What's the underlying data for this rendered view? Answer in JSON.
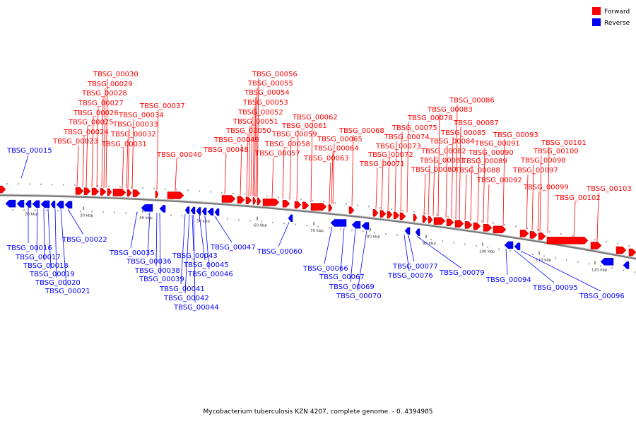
{
  "legend": {
    "forward_label": "Forward",
    "reverse_label": "Reverse",
    "forward_color": "#ff0000",
    "reverse_color": "#0000ff"
  },
  "caption": "Mycobacterium tuberculosis KZN 4207, complete genome. - 0..4394985",
  "axis_ticks": [
    "20 kbp",
    "30 kbp",
    "40 kbp",
    "50 kbp",
    "60 kbp",
    "70 kbp",
    "80 kbp",
    "90 kbp",
    "100 kbp",
    "110 kbp",
    "120 kbp"
  ],
  "forward_labels": [
    "TBSG_00023",
    "TBSG_00024",
    "TBSG_00025",
    "TBSG_00026",
    "TBSG_00027",
    "TBSG_00028",
    "TBSG_00029",
    "TBSG_00030",
    "TBSG_00031",
    "TBSG_00032",
    "TBSG_00033",
    "TBSG_00034",
    "TBSG_00037",
    "TBSG_00040",
    "TBSG_00048",
    "TBSG_00049",
    "TBSG_00050",
    "TBSG_00051",
    "TBSG_00052",
    "TBSG_00053",
    "TBSG_00054",
    "TBSG_00055",
    "TBSG_00056",
    "TBSG_00057",
    "TBSG_00058",
    "TBSG_00059",
    "TBSG_00061",
    "TBSG_00062",
    "TBSG_00063",
    "TBSG_00064",
    "TBSG_00065",
    "TBSG_00068",
    "TBSG_00071",
    "TBSG_00072",
    "TBSG_00073",
    "TBSG_00074",
    "TBSG_00075",
    "TBSG_00078",
    "TBSG_00080",
    "TBSG_00081",
    "TBSG_00082",
    "TBSG_00083",
    "TBSG_00084",
    "TBSG_00085",
    "TBSG_00086",
    "TBSG_00087",
    "TBSG_00088",
    "TBSG_00089",
    "TBSG_00090",
    "TBSG_00091",
    "TBSG_00092",
    "TBSG_00093",
    "TBSG_00097",
    "TBSG_00098",
    "TBSG_00099",
    "TBSG_00100",
    "TBSG_00101",
    "TBSG_00102",
    "TBSG_00103"
  ],
  "reverse_labels": [
    "TBSG_00015",
    "TBSG_00016",
    "TBSG_00017",
    "TBSG_00018",
    "TBSG_00019",
    "TBSG_00020",
    "TBSG_00021",
    "TBSG_00022",
    "TBSG_00035",
    "TBSG_00036",
    "TBSG_00038",
    "TBSG_00039",
    "TBSG_00041",
    "TBSG_00042",
    "TBSG_00043",
    "TBSG_00044",
    "TBSG_00045",
    "TBSG_00046",
    "TBSG_00047",
    "TBSG_00060",
    "TBSG_00066",
    "TBSG_00067",
    "TBSG_00069",
    "TBSG_00070",
    "TBSG_00076",
    "TBSG_00077",
    "TBSG_00079",
    "TBSG_00094",
    "TBSG_00095",
    "TBSG_00096"
  ]
}
